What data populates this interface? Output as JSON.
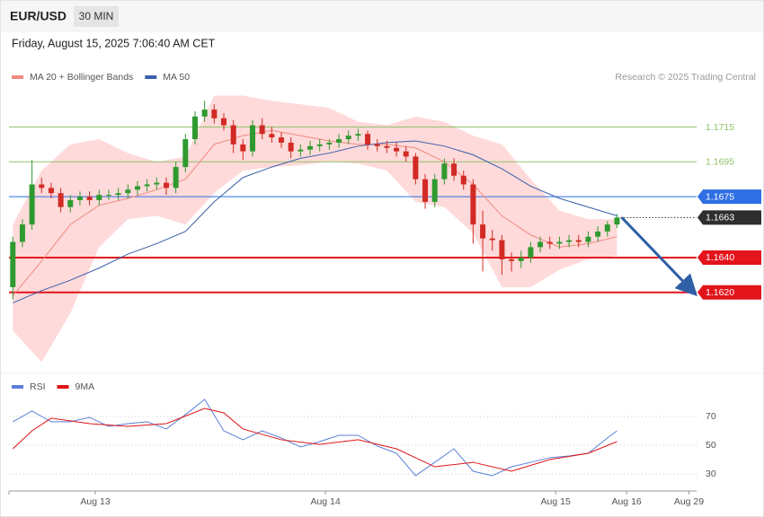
{
  "header": {
    "symbol": "EUR/USD",
    "interval": "30 MIN",
    "timestamp": "Friday, August 15, 2025 7:06:40 AM CET"
  },
  "chart_data": [
    {
      "type": "candlestick",
      "attribution": "Research © 2025 Trading Central",
      "x": [
        0,
        1,
        2,
        3,
        4,
        5,
        6,
        7,
        8,
        9,
        10,
        11,
        12,
        13,
        14,
        15,
        16,
        17,
        18,
        19,
        20,
        21,
        22,
        23,
        24,
        25,
        26,
        27,
        28,
        29,
        30,
        31,
        32,
        33,
        34,
        35,
        36,
        37,
        38,
        39,
        40,
        41,
        42,
        43,
        44,
        45,
        46,
        47,
        48,
        49,
        50,
        51,
        52,
        53,
        54,
        55,
        56,
        57,
        58,
        59,
        60,
        61,
        62,
        63
      ],
      "open": [
        1.1623,
        1.1649,
        1.1659,
        1.1682,
        1.168,
        1.1677,
        1.1669,
        1.1673,
        1.1675,
        1.1673,
        1.1676,
        1.1676,
        1.1677,
        1.1679,
        1.1681,
        1.1682,
        1.1683,
        1.168,
        1.1692,
        1.1708,
        1.1721,
        1.1725,
        1.172,
        1.1716,
        1.1705,
        1.1701,
        1.1716,
        1.1711,
        1.1709,
        1.1706,
        1.1701,
        1.1702,
        1.1704,
        1.1705,
        1.1706,
        1.1708,
        1.171,
        1.1711,
        1.1705,
        1.1704,
        1.1703,
        1.1701,
        1.1698,
        1.1685,
        1.1672,
        1.1685,
        1.1694,
        1.1687,
        1.1682,
        1.1659,
        1.1651,
        1.165,
        1.1639,
        1.1638,
        1.164,
        1.1646,
        1.1649,
        1.1648,
        1.1649,
        1.165,
        1.1649,
        1.1652,
        1.1655,
        1.1659
      ],
      "high": [
        1.1652,
        1.1662,
        1.1696,
        1.1686,
        1.1683,
        1.168,
        1.1676,
        1.1678,
        1.1678,
        1.1679,
        1.1679,
        1.168,
        1.1682,
        1.1684,
        1.1685,
        1.1686,
        1.1686,
        1.1695,
        1.1711,
        1.1724,
        1.173,
        1.1728,
        1.1723,
        1.1719,
        1.1708,
        1.1719,
        1.172,
        1.1715,
        1.1712,
        1.1709,
        1.1705,
        1.1707,
        1.1708,
        1.1708,
        1.1711,
        1.1713,
        1.1714,
        1.1713,
        1.1708,
        1.1707,
        1.1706,
        1.1704,
        1.17,
        1.1688,
        1.1688,
        1.1697,
        1.1697,
        1.169,
        1.1685,
        1.1667,
        1.1656,
        1.1653,
        1.1643,
        1.1644,
        1.1649,
        1.1652,
        1.1652,
        1.1652,
        1.1653,
        1.1653,
        1.1655,
        1.1658,
        1.1661,
        1.1665
      ],
      "low": [
        1.1616,
        1.1646,
        1.1656,
        1.1677,
        1.1674,
        1.1666,
        1.1666,
        1.167,
        1.167,
        1.167,
        1.1673,
        1.1673,
        1.1674,
        1.1676,
        1.1678,
        1.1679,
        1.1676,
        1.1677,
        1.1689,
        1.1705,
        1.1718,
        1.1717,
        1.1713,
        1.17,
        1.1696,
        1.1698,
        1.1708,
        1.1706,
        1.1703,
        1.1697,
        1.1698,
        1.1699,
        1.1701,
        1.1702,
        1.1703,
        1.1705,
        1.1707,
        1.1702,
        1.1701,
        1.17,
        1.1698,
        1.1695,
        1.1682,
        1.1668,
        1.1669,
        1.1682,
        1.1684,
        1.1679,
        1.1648,
        1.1632,
        1.1644,
        1.163,
        1.1632,
        1.1634,
        1.1637,
        1.1643,
        1.1645,
        1.1645,
        1.1646,
        1.1646,
        1.1646,
        1.1649,
        1.1652,
        1.1657
      ],
      "close": [
        1.1649,
        1.1659,
        1.1682,
        1.168,
        1.1677,
        1.1669,
        1.1673,
        1.1675,
        1.1673,
        1.1676,
        1.1676,
        1.1677,
        1.1679,
        1.1681,
        1.1682,
        1.1683,
        1.168,
        1.1692,
        1.1708,
        1.1721,
        1.1725,
        1.172,
        1.1716,
        1.1705,
        1.1701,
        1.1716,
        1.1711,
        1.1709,
        1.1706,
        1.1701,
        1.1702,
        1.1704,
        1.1705,
        1.1706,
        1.1708,
        1.171,
        1.1711,
        1.1705,
        1.1704,
        1.1703,
        1.1701,
        1.1698,
        1.1685,
        1.1672,
        1.1685,
        1.1694,
        1.1687,
        1.1682,
        1.1659,
        1.1651,
        1.165,
        1.1639,
        1.1638,
        1.164,
        1.1646,
        1.1649,
        1.1648,
        1.1649,
        1.165,
        1.1649,
        1.1652,
        1.1655,
        1.1659,
        1.1663
      ],
      "up_color": "#2f9a2f",
      "down_color": "#d22a24",
      "series": [
        {
          "name": "MA 20 + Bollinger Bands",
          "color": "#f08a80",
          "band_color": "#ffdada",
          "x": [
            0,
            3,
            6,
            9,
            12,
            15,
            18,
            21,
            24,
            27,
            30,
            33,
            36,
            39,
            42,
            45,
            48,
            51,
            54,
            57,
            60,
            63
          ],
          "values": [
            1.1618,
            1.1638,
            1.1659,
            1.167,
            1.1674,
            1.1679,
            1.1685,
            1.1705,
            1.171,
            1.1713,
            1.171,
            1.1707,
            1.1705,
            1.1705,
            1.1703,
            1.1695,
            1.1682,
            1.1664,
            1.1653,
            1.1646,
            1.1648,
            1.1652
          ],
          "upper": [
            1.1659,
            1.169,
            1.1705,
            1.1708,
            1.17,
            1.1695,
            1.1698,
            1.1733,
            1.1733,
            1.173,
            1.1728,
            1.1726,
            1.1718,
            1.1716,
            1.1721,
            1.1718,
            1.171,
            1.1705,
            1.1685,
            1.1667,
            1.1662,
            1.1662
          ],
          "lower": [
            1.1598,
            1.158,
            1.1608,
            1.1646,
            1.1662,
            1.1664,
            1.1659,
            1.1677,
            1.169,
            1.1692,
            1.1693,
            1.1695,
            1.1694,
            1.169,
            1.1672,
            1.1669,
            1.1654,
            1.1623,
            1.1623,
            1.1633,
            1.1639,
            1.1641
          ]
        },
        {
          "name": "MA 50",
          "color": "#3a5fa8",
          "x": [
            0,
            3,
            6,
            9,
            12,
            15,
            18,
            21,
            24,
            27,
            30,
            33,
            36,
            39,
            42,
            45,
            48,
            51,
            54,
            57,
            60,
            63
          ],
          "values": [
            1.1614,
            1.1621,
            1.1627,
            1.1634,
            1.1642,
            1.1648,
            1.1655,
            1.1672,
            1.1686,
            1.1692,
            1.1697,
            1.17,
            1.1704,
            1.1706,
            1.1707,
            1.1704,
            1.1699,
            1.1691,
            1.1681,
            1.1674,
            1.1669,
            1.1664
          ]
        }
      ],
      "levels": [
        {
          "value": 1.1715,
          "label": "1.1715",
          "color": "#8fc26a",
          "tag": false,
          "dotted": false,
          "thick": false
        },
        {
          "value": 1.1695,
          "label": "1.1695",
          "color": "#8fc26a",
          "tag": false,
          "dotted": false,
          "thick": false
        },
        {
          "value": 1.1675,
          "label": "1.1675",
          "color": "#2f6fe4",
          "tag": true,
          "dotted": false,
          "thick": false
        },
        {
          "value": 1.1663,
          "label": "1.1663",
          "color": "#2e2e2e",
          "tag": true,
          "dotted": true,
          "thick": false
        },
        {
          "value": 1.164,
          "label": "1.1640",
          "color": "#e3141b",
          "tag": true,
          "dotted": false,
          "thick": true
        },
        {
          "value": 1.162,
          "label": "1.1620",
          "color": "#e3141b",
          "tag": true,
          "dotted": false,
          "thick": true
        }
      ],
      "forecast": {
        "x": [
          63.5,
          71
        ],
        "values": [
          1.1663,
          1.162
        ],
        "color": "#2f5fa6"
      },
      "xlim": [
        -0.4,
        71.3
      ],
      "ylim": [
        1.1574,
        1.1757
      ]
    },
    {
      "type": "line",
      "series": [
        {
          "name": "RSI",
          "color": "#5b7fd8",
          "x": [
            0,
            2,
            4,
            6,
            8,
            10,
            12,
            14,
            16,
            18,
            20,
            22,
            24,
            26,
            28,
            30,
            32,
            34,
            36,
            38,
            40,
            42,
            44,
            46,
            48,
            50,
            52,
            54,
            56,
            58,
            60,
            62,
            63
          ],
          "values": [
            66.3,
            73.8,
            66.3,
            66.3,
            69.4,
            63.1,
            65,
            66.3,
            61.3,
            71.3,
            81.9,
            60,
            53.8,
            60,
            55,
            48.8,
            52.5,
            56.9,
            56.9,
            49.4,
            44.4,
            28.8,
            38.1,
            47.5,
            31.9,
            28.8,
            35,
            38.1,
            41.3,
            42.5,
            44.4,
            55,
            60
          ]
        },
        {
          "name": "9MA",
          "color": "#e01414",
          "x": [
            0,
            2,
            4,
            8,
            12,
            16,
            20,
            22,
            24,
            28,
            32,
            36,
            40,
            44,
            48,
            52,
            56,
            60,
            63
          ],
          "values": [
            47.5,
            60,
            68.8,
            65,
            63.1,
            65,
            75.6,
            72.5,
            61.3,
            53.8,
            50.6,
            53.8,
            47.5,
            35,
            38.1,
            31.9,
            40,
            44.4,
            52.5
          ]
        }
      ],
      "xlim": [
        -0.4,
        71.3
      ],
      "ylim": [
        19.4,
        85
      ],
      "yticks": [
        30,
        50,
        70
      ],
      "xticks": [
        {
          "value": 8.6,
          "label": "Aug 13"
        },
        {
          "value": 32.6,
          "label": "Aug 14"
        },
        {
          "value": 56.6,
          "label": "Aug 15"
        },
        {
          "value": 64,
          "label": "Aug 16"
        },
        {
          "value": 70.5,
          "label": "Aug 29"
        }
      ]
    }
  ]
}
